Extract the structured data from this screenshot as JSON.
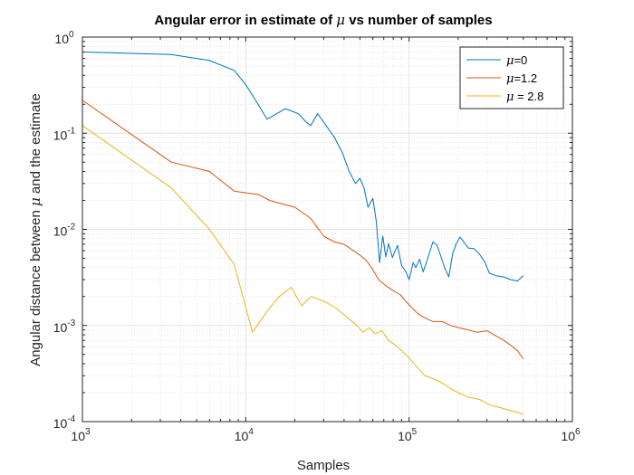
{
  "chart_data": {
    "type": "line",
    "title_prefix": "Angular error in estimate of ",
    "title_symbol": "μ",
    "title_suffix": " vs number of samples",
    "xlabel": "Samples",
    "ylabel_prefix": "Angular distance between ",
    "ylabel_symbol": "μ",
    "ylabel_suffix": " and the estimate",
    "xscale": "log",
    "yscale": "log",
    "xlim": [
      1000,
      1000000
    ],
    "ylim": [
      0.0001,
      1
    ],
    "x_ticks": [
      {
        "base": "10",
        "exp": "3"
      },
      {
        "base": "10",
        "exp": "4"
      },
      {
        "base": "10",
        "exp": "5"
      },
      {
        "base": "10",
        "exp": "6"
      }
    ],
    "y_ticks": [
      {
        "base": "10",
        "exp": "-4"
      },
      {
        "base": "10",
        "exp": "-3"
      },
      {
        "base": "10",
        "exp": "-2"
      },
      {
        "base": "10",
        "exp": "-1"
      },
      {
        "base": "10",
        "exp": "0"
      }
    ],
    "grid": true,
    "minor_grid": true,
    "legend_position": "top-right",
    "series": [
      {
        "name_symbol": "μ",
        "name_suffix": "=0",
        "color": "#0072BD",
        "points": [
          [
            1000,
            0.7
          ],
          [
            3500,
            0.66
          ],
          [
            6000,
            0.57
          ],
          [
            8500,
            0.45
          ],
          [
            10000,
            0.32
          ],
          [
            11500,
            0.22
          ],
          [
            13500,
            0.14
          ],
          [
            15500,
            0.16
          ],
          [
            17500,
            0.18
          ],
          [
            21000,
            0.16
          ],
          [
            23500,
            0.13
          ],
          [
            25000,
            0.12
          ],
          [
            27500,
            0.16
          ],
          [
            30000,
            0.13
          ],
          [
            35000,
            0.09
          ],
          [
            39000,
            0.063
          ],
          [
            43000,
            0.04
          ],
          [
            47000,
            0.03
          ],
          [
            50000,
            0.034
          ],
          [
            53000,
            0.027
          ],
          [
            56000,
            0.017
          ],
          [
            60000,
            0.021
          ],
          [
            63000,
            0.012
          ],
          [
            66000,
            0.0045
          ],
          [
            69000,
            0.0085
          ],
          [
            72000,
            0.0052
          ],
          [
            75000,
            0.0071
          ],
          [
            79000,
            0.0051
          ],
          [
            85000,
            0.0068
          ],
          [
            90000,
            0.0042
          ],
          [
            95000,
            0.0037
          ],
          [
            100000,
            0.003
          ],
          [
            106000,
            0.0045
          ],
          [
            110000,
            0.004
          ],
          [
            116000,
            0.0049
          ],
          [
            122000,
            0.0036
          ],
          [
            130000,
            0.005
          ],
          [
            140000,
            0.0074
          ],
          [
            148000,
            0.0069
          ],
          [
            155000,
            0.0055
          ],
          [
            165000,
            0.004
          ],
          [
            175000,
            0.0032
          ],
          [
            185000,
            0.0056
          ],
          [
            195000,
            0.0072
          ],
          [
            205000,
            0.0083
          ],
          [
            215000,
            0.0075
          ],
          [
            230000,
            0.0064
          ],
          [
            250000,
            0.0063
          ],
          [
            270000,
            0.0055
          ],
          [
            290000,
            0.0046
          ],
          [
            310000,
            0.0035
          ],
          [
            340000,
            0.0033
          ],
          [
            380000,
            0.0032
          ],
          [
            420000,
            0.003
          ],
          [
            460000,
            0.0029
          ],
          [
            500000,
            0.0033
          ]
        ]
      },
      {
        "name_symbol": "μ",
        "name_suffix": "=1.2",
        "color": "#D95319",
        "points": [
          [
            1000,
            0.22
          ],
          [
            3500,
            0.05
          ],
          [
            6000,
            0.04
          ],
          [
            8500,
            0.025
          ],
          [
            10000,
            0.024
          ],
          [
            12000,
            0.023
          ],
          [
            14000,
            0.02
          ],
          [
            17500,
            0.018
          ],
          [
            20000,
            0.017
          ],
          [
            25000,
            0.013
          ],
          [
            30000,
            0.0085
          ],
          [
            35000,
            0.0074
          ],
          [
            40000,
            0.007
          ],
          [
            45000,
            0.0061
          ],
          [
            50000,
            0.0054
          ],
          [
            55000,
            0.0047
          ],
          [
            60000,
            0.0038
          ],
          [
            65000,
            0.003
          ],
          [
            72000,
            0.0026
          ],
          [
            80000,
            0.0023
          ],
          [
            88000,
            0.0021
          ],
          [
            95000,
            0.0018
          ],
          [
            105000,
            0.0015
          ],
          [
            115000,
            0.0013
          ],
          [
            125000,
            0.0012
          ],
          [
            140000,
            0.0011
          ],
          [
            160000,
            0.0011
          ],
          [
            180000,
            0.001
          ],
          [
            200000,
            0.00095
          ],
          [
            230000,
            0.0009
          ],
          [
            260000,
            0.00085
          ],
          [
            300000,
            0.00088
          ],
          [
            340000,
            0.00078
          ],
          [
            380000,
            0.0007
          ],
          [
            420000,
            0.00062
          ],
          [
            460000,
            0.00055
          ],
          [
            500000,
            0.00045
          ]
        ]
      },
      {
        "name_symbol": "μ",
        "name_suffix": " = 2.8",
        "color": "#EDB120",
        "points": [
          [
            1000,
            0.12
          ],
          [
            3500,
            0.027
          ],
          [
            6000,
            0.01
          ],
          [
            8500,
            0.0043
          ],
          [
            11000,
            0.00085
          ],
          [
            13500,
            0.0014
          ],
          [
            16000,
            0.002
          ],
          [
            19000,
            0.0025
          ],
          [
            22000,
            0.0016
          ],
          [
            25000,
            0.002
          ],
          [
            30000,
            0.0018
          ],
          [
            36000,
            0.0015
          ],
          [
            42000,
            0.0012
          ],
          [
            48000,
            0.001
          ],
          [
            52000,
            0.00085
          ],
          [
            57000,
            0.00095
          ],
          [
            62000,
            0.00082
          ],
          [
            68000,
            0.00088
          ],
          [
            75000,
            0.0007
          ],
          [
            85000,
            0.0006
          ],
          [
            95000,
            0.0005
          ],
          [
            105000,
            0.00042
          ],
          [
            115000,
            0.00035
          ],
          [
            125000,
            0.0003
          ],
          [
            140000,
            0.00028
          ],
          [
            160000,
            0.00025
          ],
          [
            180000,
            0.00022
          ],
          [
            200000,
            0.0002
          ],
          [
            230000,
            0.00018
          ],
          [
            270000,
            0.00017
          ],
          [
            310000,
            0.00015
          ],
          [
            360000,
            0.00014
          ],
          [
            420000,
            0.00013
          ],
          [
            500000,
            0.00012
          ]
        ]
      }
    ]
  }
}
